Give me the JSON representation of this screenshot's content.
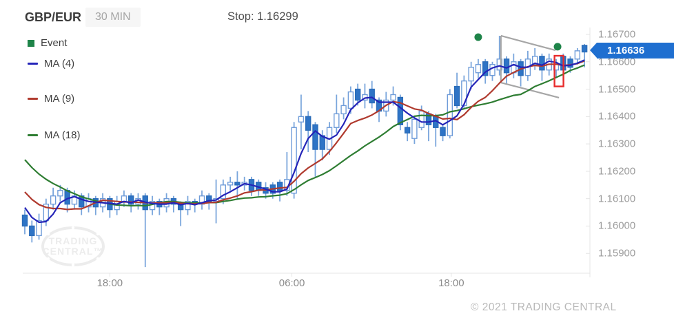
{
  "header": {
    "symbol": "GBP/EUR",
    "timeframe": "30 MIN",
    "stop_label": "Stop: 1.16299"
  },
  "legend": [
    {
      "label": "Event",
      "color": "#1e8449",
      "type": "square"
    },
    {
      "label": "MA (4)",
      "color": "#2424b8",
      "type": "line"
    },
    {
      "label": "MA (9)",
      "color": "#b03a2e",
      "type": "line"
    },
    {
      "label": "MA (18)",
      "color": "#2e7d32",
      "type": "line"
    }
  ],
  "watermark": {
    "line1": "TRADING",
    "line2": "CENTRAL™"
  },
  "price_flag": {
    "value": "1.16636",
    "color": "#1f6fd0"
  },
  "footer": {
    "copyright": "© 2021 TRADING CENTRAL"
  },
  "chart_data": {
    "type": "candlestick",
    "symbol": "GBP/EUR",
    "interval": "30 MIN",
    "stop": 1.16299,
    "last_price": 1.16636,
    "ylim": [
      1.159,
      1.167
    ],
    "grid": false,
    "y_axis_ticks": [
      {
        "label": "1.16700",
        "value": 1.167
      },
      {
        "label": "1.16600",
        "value": 1.166
      },
      {
        "label": "1.16500",
        "value": 1.165
      },
      {
        "label": "1.16400",
        "value": 1.164
      },
      {
        "label": "1.16300",
        "value": 1.163
      },
      {
        "label": "1.16200",
        "value": 1.162
      },
      {
        "label": "1.16100",
        "value": 1.161
      },
      {
        "label": "1.16000",
        "value": 1.16
      },
      {
        "label": "1.15900",
        "value": 1.159
      }
    ],
    "x_axis_labels": [
      {
        "label": "18:00",
        "index": 12.0
      },
      {
        "label": "06:00",
        "index": 37.7
      },
      {
        "label": "18:00",
        "index": 60.2
      }
    ],
    "moving_averages": [
      {
        "period": 4,
        "color": "#2424b8"
      },
      {
        "period": 9,
        "color": "#b03a2e"
      },
      {
        "period": 18,
        "color": "#2e7d32"
      }
    ],
    "lead_in_closes": [
      1.1648,
      1.1645,
      1.1642,
      1.1639,
      1.1636,
      1.1633,
      1.163,
      1.1627,
      1.1624,
      1.1621,
      1.1619,
      1.1617,
      1.1615,
      1.1613,
      1.1611,
      1.1609,
      1.1607
    ],
    "candles": [
      [
        1.1604,
        1.1606,
        1.1597,
        1.16
      ],
      [
        1.16,
        1.1602,
        1.1594,
        1.15965
      ],
      [
        1.15965,
        1.16045,
        1.1595,
        1.1602
      ],
      [
        1.1602,
        1.161,
        1.16,
        1.1608
      ],
      [
        1.1608,
        1.1614,
        1.1606,
        1.1611
      ],
      [
        1.1611,
        1.1615,
        1.1609,
        1.1613
      ],
      [
        1.1613,
        1.1614,
        1.1605,
        1.1608
      ],
      [
        1.1608,
        1.1613,
        1.1606,
        1.1611
      ],
      [
        1.1611,
        1.1612,
        1.1604,
        1.1607
      ],
      [
        1.1607,
        1.1612,
        1.1605,
        1.161
      ],
      [
        1.161,
        1.1611,
        1.1604,
        1.1607
      ],
      [
        1.1607,
        1.1612,
        1.1605,
        1.161
      ],
      [
        1.161,
        1.1611,
        1.1603,
        1.1606
      ],
      [
        1.1606,
        1.1611,
        1.1604,
        1.1609
      ],
      [
        1.1609,
        1.1613,
        1.1607,
        1.1611
      ],
      [
        1.1611,
        1.1612,
        1.1605,
        1.1608
      ],
      [
        1.1608,
        1.1612,
        1.1606,
        1.161
      ],
      [
        1.1611,
        1.1612,
        1.1585,
        1.1606
      ],
      [
        1.1606,
        1.1611,
        1.1604,
        1.1609
      ],
      [
        1.1609,
        1.161,
        1.1604,
        1.1607
      ],
      [
        1.1607,
        1.1612,
        1.1605,
        1.161
      ],
      [
        1.161,
        1.1611,
        1.1605,
        1.1608
      ],
      [
        1.1608,
        1.1609,
        1.16,
        1.1606
      ],
      [
        1.1606,
        1.1611,
        1.1604,
        1.1609
      ],
      [
        1.1609,
        1.161,
        1.1605,
        1.1608
      ],
      [
        1.1608,
        1.1613,
        1.1606,
        1.1611
      ],
      [
        1.1611,
        1.1612,
        1.1606,
        1.1609
      ],
      [
        1.1609,
        1.1617,
        1.1601,
        1.161
      ],
      [
        1.161,
        1.1617,
        1.1608,
        1.1615
      ],
      [
        1.1615,
        1.1618,
        1.1613,
        1.1616
      ],
      [
        1.1616,
        1.162,
        1.161,
        1.1615
      ],
      [
        1.1615,
        1.1618,
        1.1613,
        1.1616
      ],
      [
        1.1617,
        1.1618,
        1.1611,
        1.1613
      ],
      [
        1.1616,
        1.1617,
        1.1611,
        1.1613
      ],
      [
        1.1614,
        1.1616,
        1.161,
        1.1612
      ],
      [
        1.1615,
        1.1616,
        1.161,
        1.1612
      ],
      [
        1.1616,
        1.1617,
        1.1609,
        1.1613
      ],
      [
        1.1613,
        1.1627,
        1.1611,
        1.1617
      ],
      [
        1.1612,
        1.1638,
        1.161,
        1.1636
      ],
      [
        1.1638,
        1.1648,
        1.1628,
        1.164
      ],
      [
        1.164,
        1.1642,
        1.1627,
        1.1635
      ],
      [
        1.1637,
        1.1638,
        1.1618,
        1.1628
      ],
      [
        1.1633,
        1.1635,
        1.1624,
        1.1628
      ],
      [
        1.1628,
        1.1638,
        1.1626,
        1.1636
      ],
      [
        1.1636,
        1.1648,
        1.1634,
        1.1641
      ],
      [
        1.1641,
        1.1647,
        1.1639,
        1.1644
      ],
      [
        1.1643,
        1.1651,
        1.1641,
        1.1649
      ],
      [
        1.165,
        1.1652,
        1.1644,
        1.1646
      ],
      [
        1.1646,
        1.1652,
        1.1643,
        1.1648
      ],
      [
        1.165,
        1.1653,
        1.1643,
        1.1645
      ],
      [
        1.1646,
        1.1647,
        1.1638,
        1.1642
      ],
      [
        1.1642,
        1.1649,
        1.164,
        1.1646
      ],
      [
        1.1646,
        1.1651,
        1.1644,
        1.1648
      ],
      [
        1.1647,
        1.1648,
        1.1635,
        1.1637
      ],
      [
        1.1636,
        1.1638,
        1.1631,
        1.1634
      ],
      [
        1.1632,
        1.164,
        1.163,
        1.1639
      ],
      [
        1.1636,
        1.1644,
        1.1635,
        1.1642
      ],
      [
        1.1641,
        1.1642,
        1.1631,
        1.1637
      ],
      [
        1.164,
        1.1641,
        1.1629,
        1.1636
      ],
      [
        1.1636,
        1.1637,
        1.1631,
        1.1633
      ],
      [
        1.1633,
        1.165,
        1.1632,
        1.1648
      ],
      [
        1.1651,
        1.1656,
        1.1643,
        1.1644
      ],
      [
        1.1644,
        1.1655,
        1.1643,
        1.1653
      ],
      [
        1.1653,
        1.166,
        1.165,
        1.1658
      ],
      [
        1.1656,
        1.1661,
        1.1654,
        1.1659
      ],
      [
        1.166,
        1.1661,
        1.1652,
        1.1655
      ],
      [
        1.1655,
        1.166,
        1.1653,
        1.1659
      ],
      [
        1.1657,
        1.16695,
        1.1655,
        1.1661
      ],
      [
        1.1661,
        1.1662,
        1.1652,
        1.1656
      ],
      [
        1.1656,
        1.1663,
        1.1654,
        1.166
      ],
      [
        1.166,
        1.1661,
        1.1651,
        1.1655
      ],
      [
        1.1655,
        1.1664,
        1.1653,
        1.1661
      ],
      [
        1.1659,
        1.1665,
        1.1657,
        1.1662
      ],
      [
        1.1662,
        1.1663,
        1.1653,
        1.1657
      ],
      [
        1.1657,
        1.1663,
        1.1655,
        1.1661
      ],
      [
        1.1657,
        1.1661,
        1.1654,
        1.1659
      ],
      [
        1.1662,
        1.1663,
        1.1653,
        1.1657
      ],
      [
        1.1661,
        1.1662,
        1.1656,
        1.1658
      ],
      [
        1.1661,
        1.1665,
        1.1659,
        1.1664
      ],
      [
        1.1666,
        1.16665,
        1.1658,
        1.16636
      ]
    ],
    "events": [
      {
        "index": 64.0,
        "price": 1.1669
      },
      {
        "index": 75.2,
        "price": 1.16655
      }
    ],
    "highlight_rect": {
      "index": 75.4,
      "top": 1.16622,
      "bottom": 1.1651,
      "color": "#e82c2c"
    },
    "trend_lines": [
      {
        "from": {
          "index": 67.2,
          "price": 1.16695
        },
        "to": {
          "index": 74.9,
          "price": 1.16642
        }
      },
      {
        "from": {
          "index": 67.2,
          "price": 1.16524
        },
        "to": {
          "index": 75.4,
          "price": 1.16469
        }
      },
      {
        "from": {
          "index": 67.2,
          "price": 1.16695
        },
        "to": {
          "index": 67.2,
          "price": 1.16524
        }
      }
    ],
    "colors": {
      "up_fill": "#ffffff",
      "up_border": "#6f9cd9",
      "down_fill": "#2e74c6",
      "down_border": "#2b6cb8",
      "wick": "#7aa6dc",
      "trend_line": "#a6a6a6",
      "axis": "#e4e4e4",
      "watermark": "#ececec"
    }
  }
}
